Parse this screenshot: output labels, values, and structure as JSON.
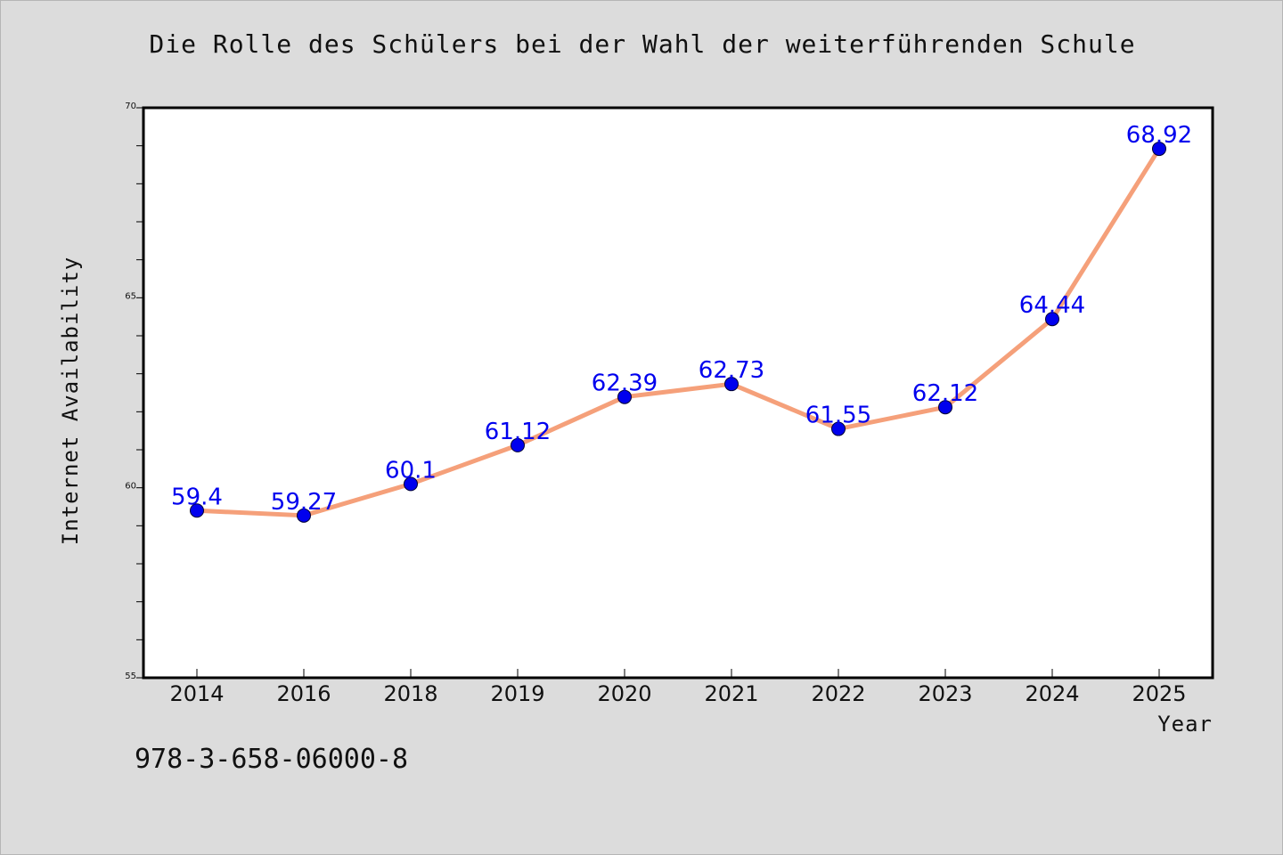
{
  "footer": {
    "isbn": "978-3-658-06000-8"
  },
  "chart_data": {
    "type": "line",
    "title": "Die Rolle des Schülers bei der Wahl der weiterführenden Schule",
    "xlabel": "Year",
    "ylabel": "Internet Availability",
    "categories": [
      "2014",
      "2016",
      "2018",
      "2019",
      "2020",
      "2021",
      "2022",
      "2023",
      "2024",
      "2025"
    ],
    "series": [
      {
        "values": [
          59.4,
          59.27,
          60.1,
          61.12,
          62.39,
          62.73,
          61.55,
          62.12,
          64.44,
          68.92
        ],
        "line_color": "#f5a07a",
        "marker_color": "#0000ee",
        "label_color": "#0000ee"
      }
    ],
    "ylim": [
      55,
      70
    ],
    "yticks": [
      "55",
      "60",
      "65",
      "70"
    ],
    "y_minor_step": 1,
    "grid": false,
    "legend": "none",
    "data_labels": [
      "59.4",
      "59.27",
      "60.1",
      "61.12",
      "62.39",
      "62.73",
      "61.55",
      "62.12",
      "64.44",
      "68.92"
    ],
    "background": "#dcdcdc",
    "plot_background": "#ffffff"
  }
}
